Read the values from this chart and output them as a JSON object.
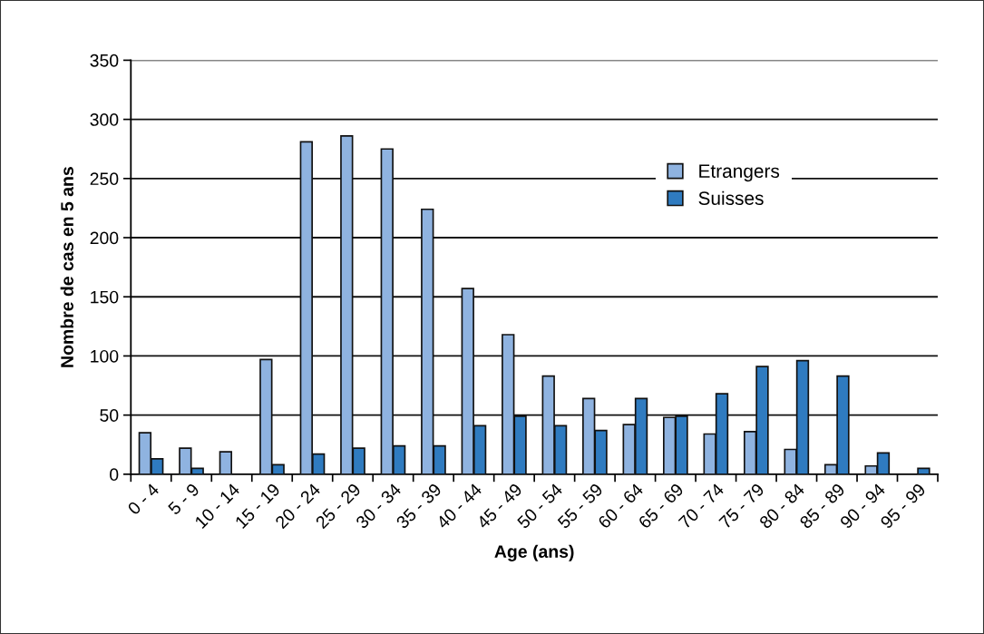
{
  "chart_data": {
    "type": "bar",
    "xlabel": "Age (ans)",
    "ylabel": "Nombre de cas en 5 ans",
    "categories": [
      "0 - 4",
      "5 - 9",
      "10 - 14",
      "15 - 19",
      "20 - 24",
      "25 - 29",
      "30 - 34",
      "35 - 39",
      "40 - 44",
      "45 - 49",
      "50 - 54",
      "55 - 59",
      "60 - 64",
      "65 - 69",
      "70 - 74",
      "75 - 79",
      "80 - 84",
      "85 - 89",
      "90 - 94",
      "95 - 99"
    ],
    "series": [
      {
        "name": "Etrangers",
        "color": "#8fb3e0",
        "values": [
          35,
          22,
          19,
          97,
          281,
          286,
          275,
          224,
          157,
          118,
          83,
          64,
          42,
          48,
          34,
          36,
          21,
          8,
          7,
          0
        ]
      },
      {
        "name": "Suisses",
        "color": "#2f7bc0",
        "values": [
          13,
          5,
          0,
          8,
          17,
          22,
          24,
          24,
          41,
          49,
          41,
          37,
          64,
          49,
          68,
          91,
          96,
          83,
          18,
          5
        ]
      }
    ],
    "ylim": [
      0,
      350
    ],
    "yticks": [
      0,
      50,
      100,
      150,
      200,
      250,
      300,
      350
    ],
    "grid": "y",
    "legend": "top right"
  }
}
